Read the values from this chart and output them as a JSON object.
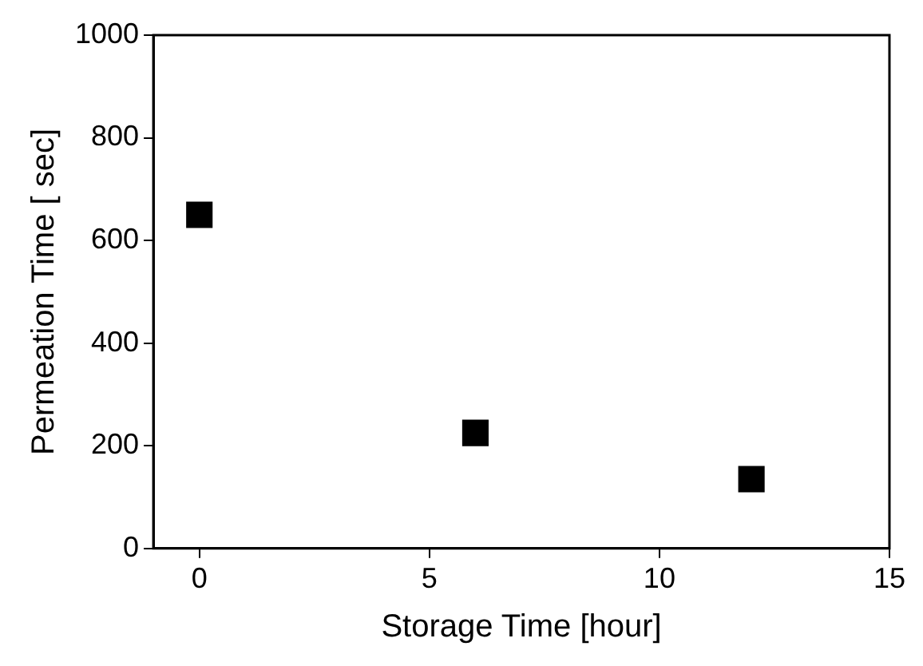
{
  "chart_data": {
    "type": "scatter",
    "xlabel": "Storage Time [hour]",
    "ylabel": "Permeation Time [ sec]",
    "x": [
      0,
      6,
      12
    ],
    "series": [
      {
        "color": "#000000",
        "values": [
          650,
          225,
          135
        ]
      }
    ],
    "xlim": [
      -1,
      15
    ],
    "xticks": [
      0,
      5,
      10,
      15
    ],
    "ylim": [
      0,
      1000
    ],
    "yticks": [
      0,
      200,
      400,
      600,
      800,
      1000
    ],
    "marker": "square",
    "grid": false,
    "legend": false
  }
}
